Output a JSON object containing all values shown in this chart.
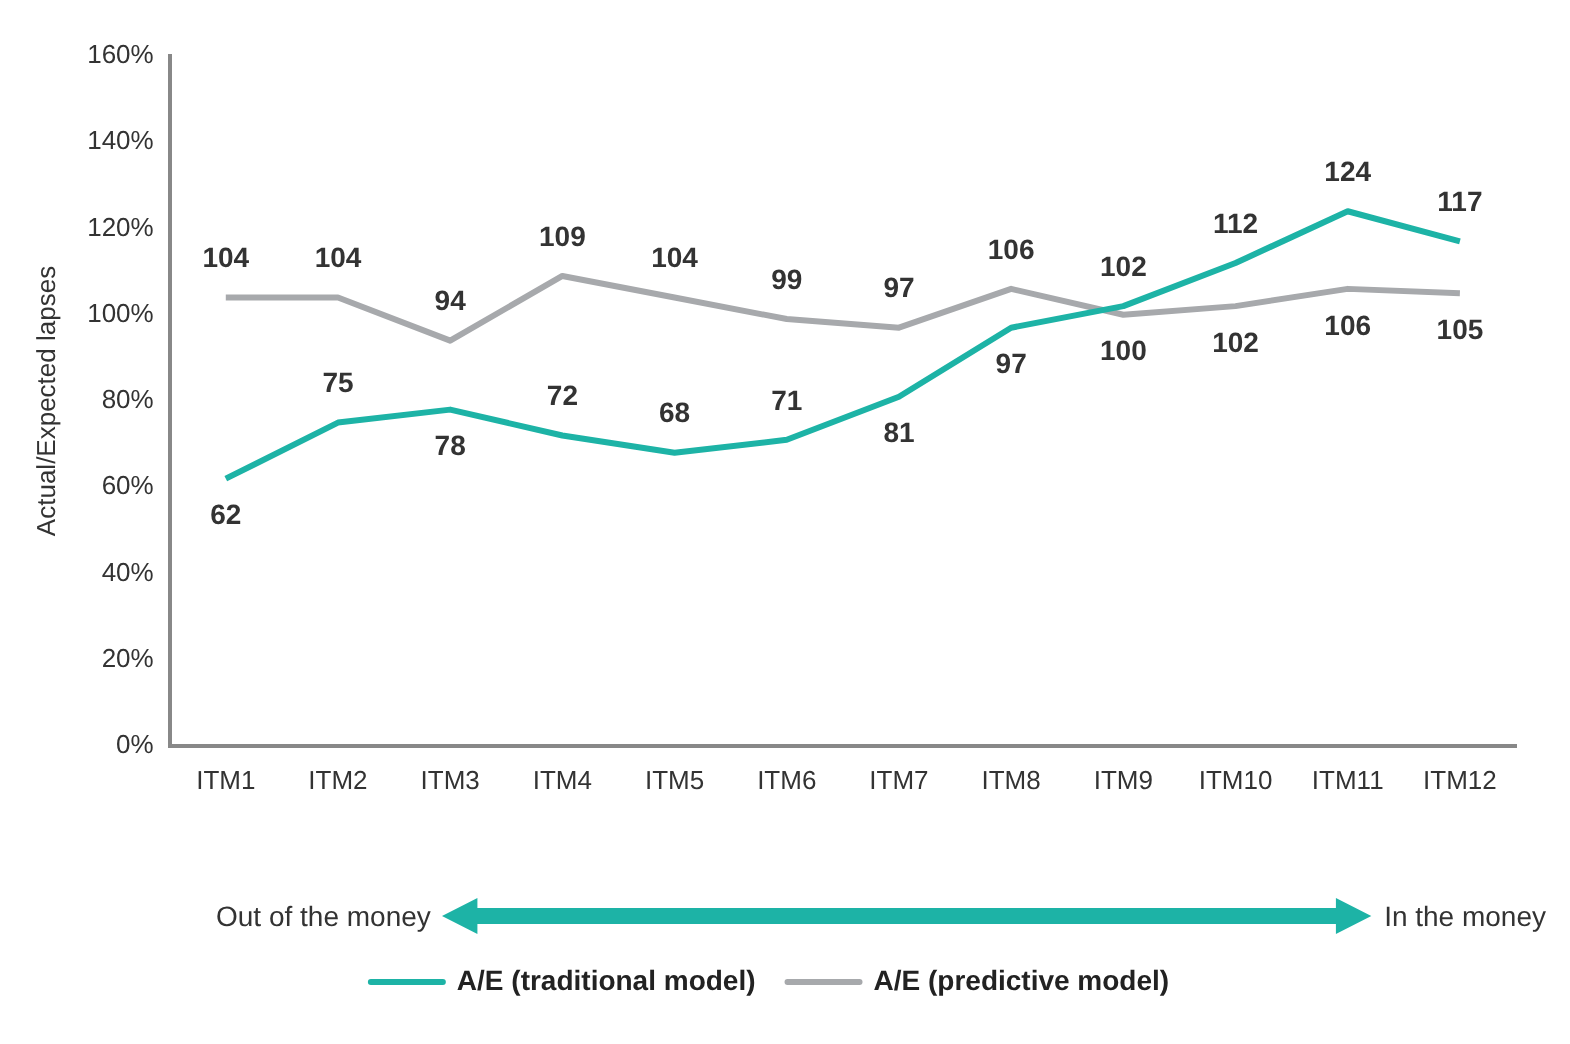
{
  "chart_data": {
    "type": "line",
    "ylabel": "Actual/Expected lapses",
    "categories": [
      "ITM1",
      "ITM2",
      "ITM3",
      "ITM4",
      "ITM5",
      "ITM6",
      "ITM7",
      "ITM8",
      "ITM9",
      "ITM10",
      "ITM11",
      "ITM12"
    ],
    "series": [
      {
        "name": "A/E (traditional model)",
        "color": "#1db3a6",
        "values": [
          62,
          75,
          78,
          72,
          68,
          71,
          81,
          97,
          102,
          112,
          124,
          117
        ]
      },
      {
        "name": "A/E (predictive model)",
        "color": "#a7a9ac",
        "values": [
          104,
          104,
          94,
          109,
          104,
          99,
          97,
          106,
          100,
          102,
          106,
          105
        ]
      }
    ],
    "ylim": [
      0,
      160
    ],
    "yticks": [
      {
        "value": 0,
        "label": "0%"
      },
      {
        "value": 20,
        "label": "20%"
      },
      {
        "value": 40,
        "label": "40%"
      },
      {
        "value": 60,
        "label": "60%"
      },
      {
        "value": 80,
        "label": "80%"
      },
      {
        "value": 100,
        "label": "100%"
      },
      {
        "value": 120,
        "label": "120%"
      },
      {
        "value": 140,
        "label": "140%"
      },
      {
        "value": 160,
        "label": "160%"
      }
    ],
    "annotations": [
      "Out of the money",
      "In the money"
    ],
    "data_labels": true,
    "grid": false,
    "legend": "bottom",
    "marker": "none",
    "line_style": "solid"
  }
}
